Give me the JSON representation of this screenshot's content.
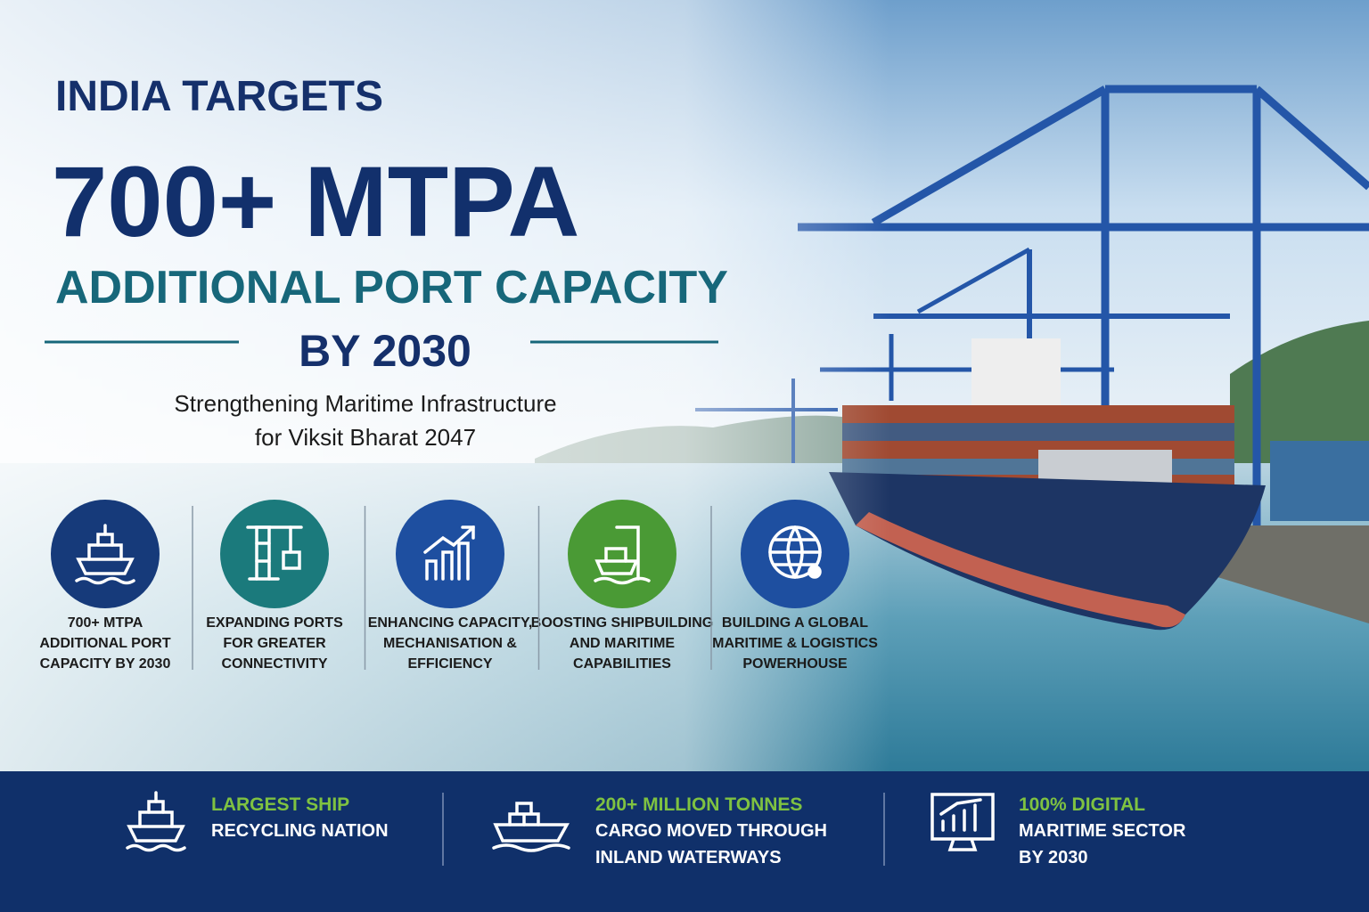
{
  "header": {
    "kicker": "INDIA TARGETS",
    "headline": "700+ MTPA",
    "subheadline": "ADDITIONAL PORT CAPACITY",
    "year_line": "BY 2030",
    "subtitle": [
      "Strengthening Maritime Infrastructure",
      "for Viksit Bharat 2047"
    ]
  },
  "features": [
    {
      "lines": [
        "700+ MTPA",
        "ADDITIONAL PORT",
        "CAPACITY BY 2030"
      ]
    },
    {
      "lines": [
        "EXPANDING PORTS",
        "FOR GREATER",
        "CONNECTIVITY"
      ]
    },
    {
      "lines": [
        "ENHANCING CAPACITY,",
        "MECHANISATION &",
        "EFFICIENCY"
      ]
    },
    {
      "lines": [
        "BOOSTING SHIPBUILDING",
        "AND MARITIME",
        "CAPABILITIES"
      ]
    },
    {
      "lines": [
        "BUILDING A GLOBAL",
        "MARITIME & LOGISTICS",
        "POWERHOUSE"
      ]
    }
  ],
  "footer": [
    {
      "highlight": "LARGEST SHIP",
      "lines": [
        "RECYCLING NATION"
      ]
    },
    {
      "highlight": "200+ MILLION TONNES",
      "lines": [
        "CARGO MOVED THROUGH",
        "INLAND WATERWAYS"
      ]
    },
    {
      "highlight": "100% DIGITAL",
      "lines": [
        "MARITIME SECTOR",
        "BY 2030"
      ]
    }
  ]
}
